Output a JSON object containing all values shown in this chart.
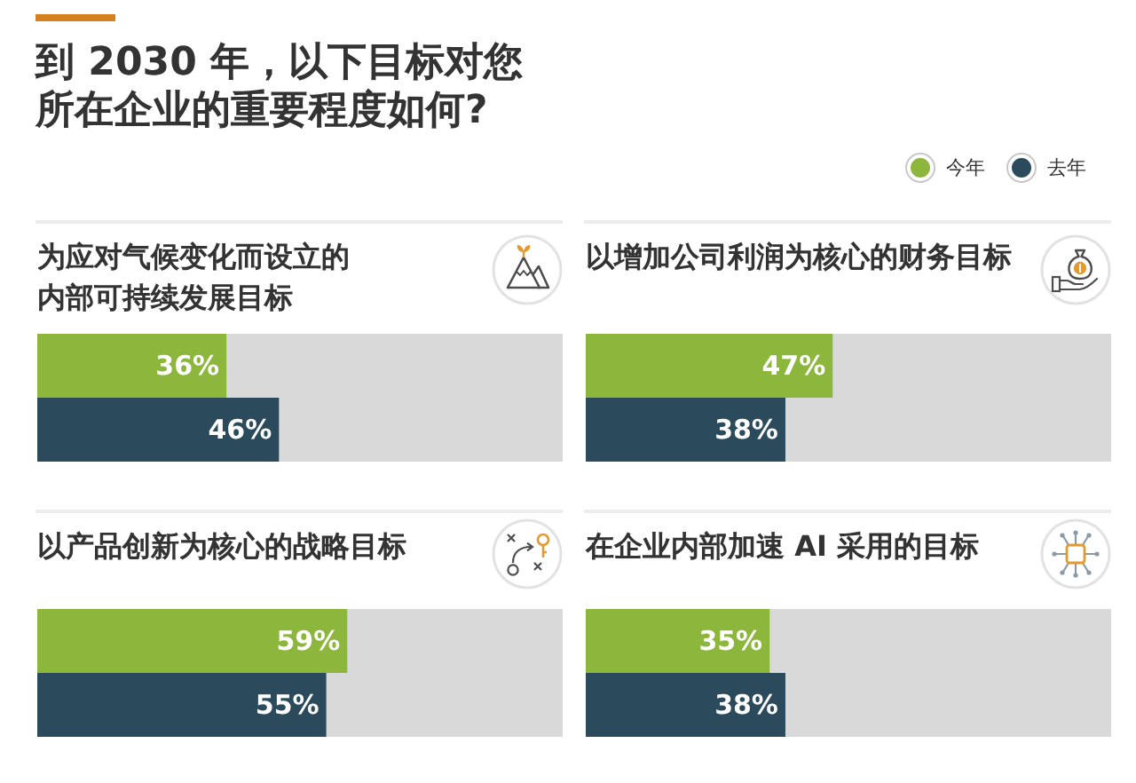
{
  "chart_data": [
    {
      "type": "other",
      "title": "到 2030 年，以下目标对您所在企业的重要程度如何?"
    },
    {
      "type": "bar",
      "title": "为应对气候变化而设立的内部可持续发展目标",
      "orientation": "horizontal",
      "categories": [
        null
      ],
      "series": [
        {
          "color": "#8cb63c",
          "values": [
            36
          ],
          "value_labels": [
            "36%"
          ]
        },
        {
          "color": "#2b4a5c",
          "values": [
            46
          ],
          "value_labels": [
            "46%"
          ]
        }
      ],
      "xlim": [
        0,
        100
      ],
      "tick_labels": false
    },
    {
      "type": "bar",
      "title": "以增加公司利润为核心的财务目标",
      "orientation": "horizontal",
      "categories": [
        null
      ],
      "series": [
        {
          "name": "今年",
          "color": "#8cb63c",
          "values": [
            47
          ],
          "value_labels": [
            "47%"
          ]
        },
        {
          "name": "去年",
          "color": "#2b4a5c",
          "values": [
            38
          ],
          "value_labels": [
            "38%"
          ]
        }
      ],
      "xlim": [
        0,
        100
      ],
      "tick_labels": false,
      "legend": "top right"
    },
    {
      "type": "bar",
      "title": "以产品创新为核心的战略目标",
      "orientation": "horizontal",
      "categories": [
        null
      ],
      "series": [
        {
          "color": "#8cb63c",
          "values": [
            59
          ],
          "value_labels": [
            "59%"
          ]
        },
        {
          "color": "#2b4a5c",
          "values": [
            55
          ],
          "value_labels": [
            "55%"
          ]
        }
      ],
      "xlim": [
        0,
        100
      ],
      "tick_labels": false
    },
    {
      "type": "bar",
      "title": "在企业内部加速 AI 采用的目标",
      "orientation": "horizontal",
      "categories": [
        null
      ],
      "series": [
        {
          "color": "#8cb63c",
          "values": [
            35
          ],
          "value_labels": [
            "35%"
          ]
        },
        {
          "color": "#2b4a5c",
          "values": [
            38
          ],
          "value_labels": [
            "38%"
          ]
        }
      ],
      "xlim": [
        0,
        100
      ],
      "tick_labels": false
    }
  ]
}
